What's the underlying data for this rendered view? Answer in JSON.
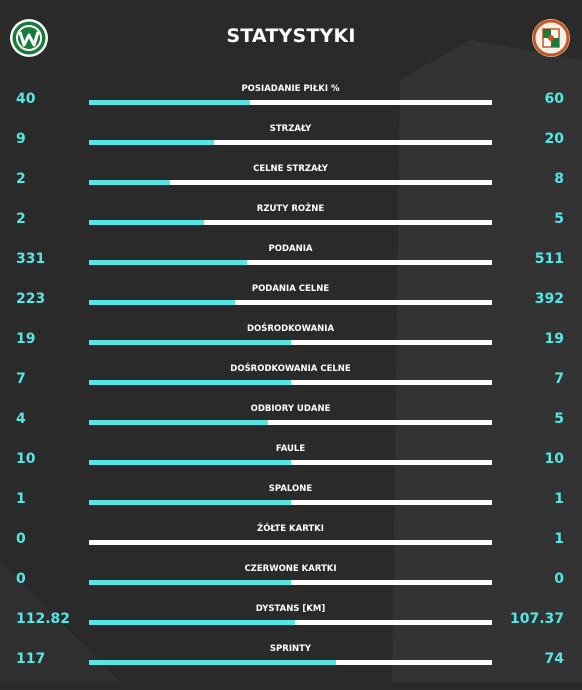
{
  "title": "STATYSTYKI",
  "colors": {
    "accent": "#55e6e6",
    "bar_track": "#ffffff",
    "background": "#2a2a2a"
  },
  "teams": {
    "home": {
      "logo": "warta-poznan-logo"
    },
    "away": {
      "logo": "zaglebie-lubin-logo"
    }
  },
  "stats": [
    {
      "label": "POSIADANIE PIŁKI %",
      "home": "40",
      "away": "60",
      "home_share": 0.4
    },
    {
      "label": "STRZAŁY",
      "home": "9",
      "away": "20",
      "home_share": 0.31
    },
    {
      "label": "CELNE STRZAŁY",
      "home": "2",
      "away": "8",
      "home_share": 0.2
    },
    {
      "label": "RZUTY ROŻNE",
      "home": "2",
      "away": "5",
      "home_share": 0.285
    },
    {
      "label": "PODANIA",
      "home": "331",
      "away": "511",
      "home_share": 0.393
    },
    {
      "label": "PODANIA CELNE",
      "home": "223",
      "away": "392",
      "home_share": 0.363
    },
    {
      "label": "DOŚRODKOWANIA",
      "home": "19",
      "away": "19",
      "home_share": 0.5
    },
    {
      "label": "DOŚRODKOWANIA CELNE",
      "home": "7",
      "away": "7",
      "home_share": 0.5
    },
    {
      "label": "ODBIORY UDANE",
      "home": "4",
      "away": "5",
      "home_share": 0.444
    },
    {
      "label": "FAULE",
      "home": "10",
      "away": "10",
      "home_share": 0.5
    },
    {
      "label": "SPALONE",
      "home": "1",
      "away": "1",
      "home_share": 0.5
    },
    {
      "label": "ŻÓŁTE KARTKI",
      "home": "0",
      "away": "1",
      "home_share": 0.0
    },
    {
      "label": "CZERWONE KARTKI",
      "home": "0",
      "away": "0",
      "home_share": 0.5
    },
    {
      "label": "DYSTANS [KM]",
      "home": "112.82",
      "away": "107.37",
      "home_share": 0.512
    },
    {
      "label": "SPRINTY",
      "home": "117",
      "away": "74",
      "home_share": 0.613
    }
  ]
}
